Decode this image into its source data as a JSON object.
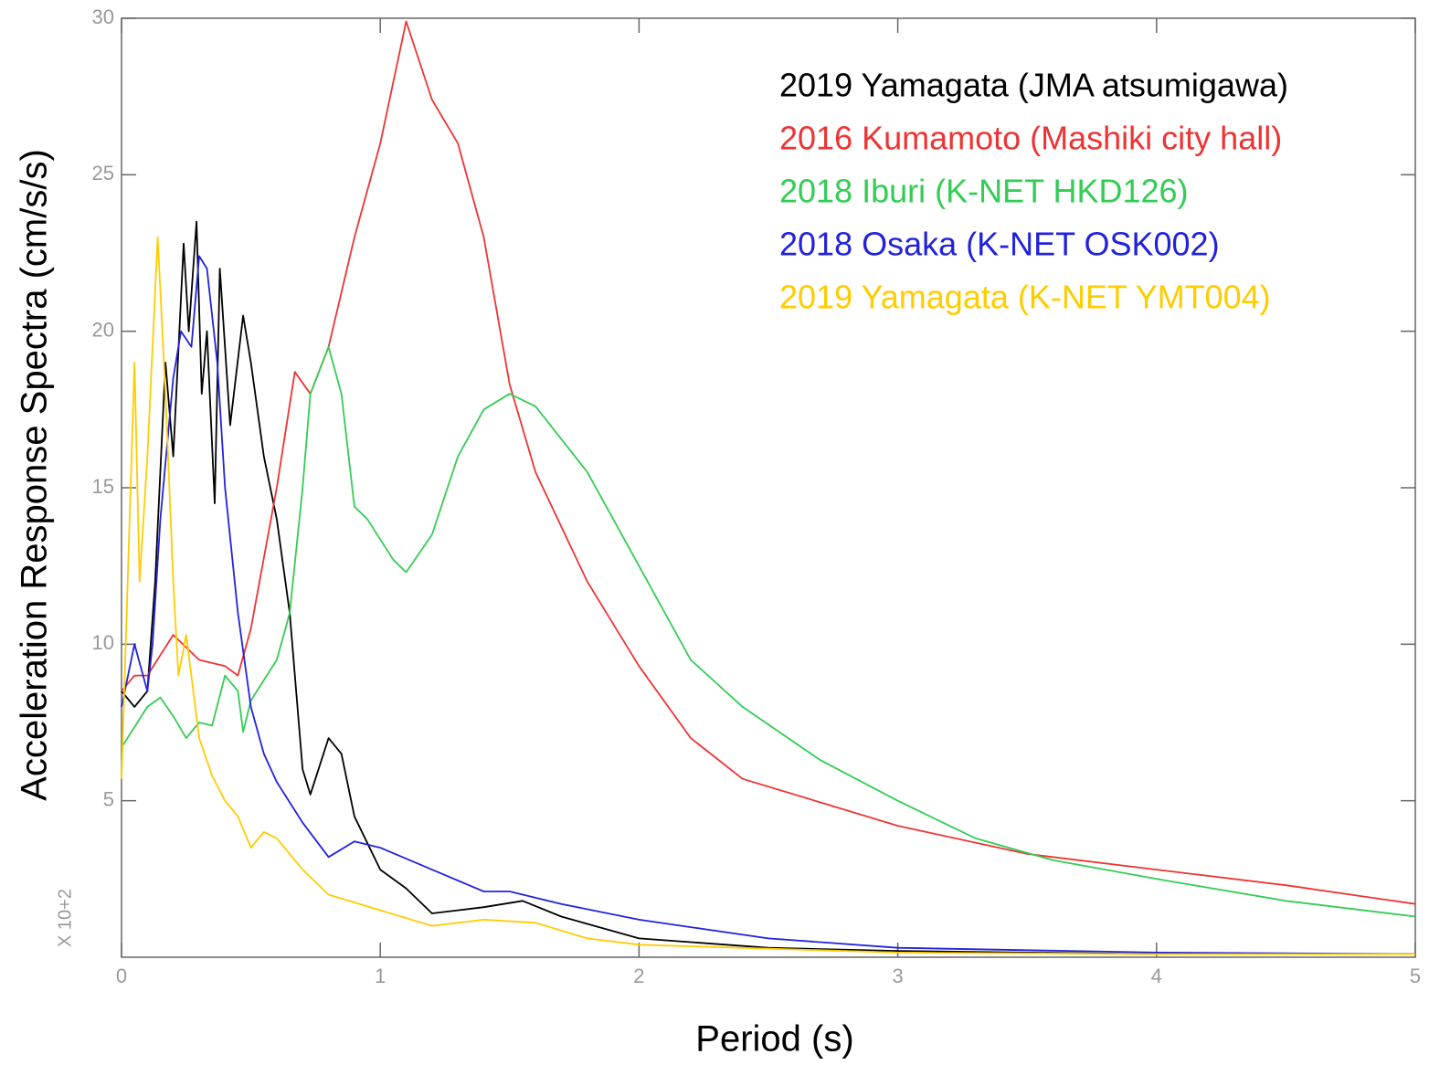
{
  "chart_data": {
    "type": "line",
    "xlabel": "Period (s)",
    "ylabel": "Acceleration Response Spectra (cm/s/s)",
    "annotation": "X 10+2",
    "xlim": [
      0,
      5
    ],
    "xticks": [
      0,
      1,
      2,
      3,
      4,
      5
    ],
    "ylim": [
      0,
      30
    ],
    "yticks": [
      5,
      10,
      15,
      20,
      25,
      30
    ],
    "grid": false,
    "legend": "upper right",
    "series": [
      {
        "name": "2019 Yamagata (JMA atsumigawa)",
        "color": "#000000",
        "x": [
          0,
          0.05,
          0.1,
          0.13,
          0.17,
          0.2,
          0.24,
          0.26,
          0.29,
          0.31,
          0.33,
          0.36,
          0.38,
          0.42,
          0.47,
          0.5,
          0.55,
          0.6,
          0.65,
          0.7,
          0.73,
          0.8,
          0.85,
          0.9,
          1.0,
          1.1,
          1.2,
          1.3,
          1.4,
          1.55,
          1.7,
          2.0,
          2.5,
          3.0,
          4.0,
          5.0
        ],
        "values": [
          8.5,
          8,
          8.5,
          12,
          19,
          16,
          22.8,
          20,
          23.5,
          18,
          20,
          14.5,
          22,
          17,
          20.5,
          19,
          16,
          14,
          11,
          6,
          5.2,
          7,
          6.5,
          4.5,
          2.8,
          2.2,
          1.4,
          1.5,
          1.6,
          1.8,
          1.3,
          0.6,
          0.3,
          0.2,
          0.1,
          0.1
        ]
      },
      {
        "name": "2016 Kumamoto (Mashiki city hall)",
        "color": "#ee3333",
        "x": [
          0,
          0.05,
          0.1,
          0.2,
          0.3,
          0.4,
          0.45,
          0.5,
          0.6,
          0.67,
          0.73,
          0.8,
          0.9,
          1.0,
          1.1,
          1.2,
          1.3,
          1.4,
          1.5,
          1.6,
          1.8,
          2.0,
          2.2,
          2.4,
          3.0,
          3.5,
          4.0,
          4.5,
          5.0
        ],
        "values": [
          8.5,
          9,
          9,
          10.3,
          9.5,
          9.3,
          9,
          10.5,
          15,
          18.7,
          18,
          19.5,
          23,
          26,
          29.9,
          27.4,
          26,
          23,
          18.3,
          15.5,
          12,
          9.3,
          7,
          5.7,
          4.2,
          3.3,
          2.8,
          2.3,
          1.7
        ]
      },
      {
        "name": "2018 Iburi (K-NET HKD126)",
        "color": "#33cc55",
        "x": [
          0,
          0.1,
          0.15,
          0.2,
          0.25,
          0.3,
          0.35,
          0.4,
          0.45,
          0.47,
          0.5,
          0.6,
          0.65,
          0.7,
          0.73,
          0.8,
          0.85,
          0.9,
          0.95,
          1.05,
          1.1,
          1.2,
          1.3,
          1.4,
          1.5,
          1.6,
          1.8,
          2.0,
          2.2,
          2.4,
          2.7,
          3.0,
          3.3,
          3.6,
          4.0,
          4.5,
          5.0
        ],
        "values": [
          6.7,
          8,
          8.3,
          7.7,
          7,
          7.5,
          7.4,
          9,
          8.5,
          7.2,
          8.2,
          9.5,
          11,
          15,
          18,
          19.5,
          18,
          14.4,
          14,
          12.7,
          12.3,
          13.5,
          16,
          17.5,
          18,
          17.6,
          15.5,
          12.5,
          9.5,
          8,
          6.3,
          5,
          3.8,
          3.1,
          2.5,
          1.8,
          1.3
        ]
      },
      {
        "name": "2018 Osaka (K-NET OSK002)",
        "color": "#2222dd",
        "x": [
          0,
          0.05,
          0.1,
          0.12,
          0.15,
          0.2,
          0.23,
          0.27,
          0.3,
          0.33,
          0.37,
          0.4,
          0.45,
          0.5,
          0.55,
          0.6,
          0.7,
          0.8,
          0.9,
          1.0,
          1.2,
          1.4,
          1.5,
          1.7,
          2.0,
          2.5,
          3.0,
          4.0,
          5.0
        ],
        "values": [
          8,
          10,
          8.5,
          10,
          14,
          18.5,
          20,
          19.5,
          22.4,
          22,
          19,
          15,
          11,
          8,
          6.5,
          5.6,
          4.3,
          3.2,
          3.7,
          3.5,
          2.8,
          2.1,
          2.1,
          1.7,
          1.2,
          0.6,
          0.3,
          0.15,
          0.1
        ]
      },
      {
        "name": "2019 Yamagata (K-NET YMT004)",
        "color": "#ffcc00",
        "x": [
          0,
          0.05,
          0.07,
          0.1,
          0.14,
          0.17,
          0.2,
          0.22,
          0.25,
          0.3,
          0.35,
          0.4,
          0.45,
          0.5,
          0.55,
          0.6,
          0.7,
          0.8,
          1.0,
          1.2,
          1.4,
          1.6,
          1.8,
          2.0,
          3.0,
          4.0,
          5.0
        ],
        "values": [
          5.7,
          19,
          12,
          16,
          23,
          18,
          12,
          9,
          10.3,
          7,
          5.8,
          5,
          4.5,
          3.5,
          4,
          3.8,
          2.8,
          2,
          1.5,
          1,
          1.2,
          1.1,
          0.6,
          0.4,
          0.15,
          0.1,
          0.1
        ]
      }
    ]
  }
}
